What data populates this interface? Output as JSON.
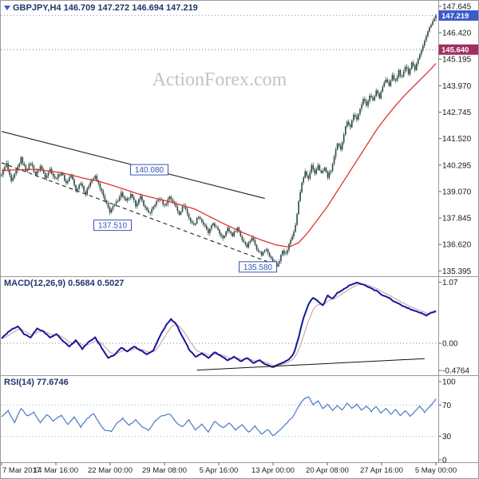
{
  "header": {
    "watermark": "ActionForex.com"
  },
  "panels": {
    "main_label": "GBPJPY,H4 146.709 147.272 146.694 147.219",
    "macd_label": "MACD(12,26,9) 0.5684 0.5027",
    "rsi_label": "RSI(14) 77.6746"
  },
  "colors": {
    "candle": "#2c4a46",
    "ma": "#e03232",
    "macd_main": "#16169c",
    "macd_signal": "#c09090",
    "rsi": "#4a78c4",
    "rsi_level": "#8fb4d0",
    "accent_blue": "#3356b4",
    "grid": "#9a9a9a",
    "axis_text": "#1a1a1a",
    "trendline": "#222222",
    "tick": "#666666"
  },
  "chart_data": [
    {
      "type": "candlestick",
      "symbol": "GBPJPY",
      "timeframe": "H4",
      "ohlc_display": {
        "open": 146.709,
        "high": 147.272,
        "low": 146.694,
        "close": 147.219
      },
      "bars": 270,
      "ylim": [
        135.15,
        147.9
      ],
      "y_ticks": [
        {
          "v": 147.645,
          "label": "147.645"
        },
        {
          "v": 146.42,
          "label": "146.420"
        },
        {
          "v": 145.195,
          "label": "145.195"
        },
        {
          "v": 143.97,
          "label": "143.970"
        },
        {
          "v": 142.745,
          "label": "142.745"
        },
        {
          "v": 141.52,
          "label": "141.520"
        },
        {
          "v": 140.295,
          "label": "140.295"
        },
        {
          "v": 139.07,
          "label": "139.070"
        },
        {
          "v": 137.845,
          "label": "137.845"
        },
        {
          "v": 136.62,
          "label": "136.620"
        },
        {
          "v": 135.395,
          "label": "135.395"
        }
      ],
      "x_ticks": [
        "7 Mar 2017",
        "14 Mar 16:00",
        "22 Mar 00:00",
        "29 Mar 08:00",
        "5 Apr 16:00",
        "13 Apr 00:00",
        "20 Apr 08:00",
        "27 Apr 16:00",
        "5 May 00:00"
      ],
      "price_tags": [
        {
          "text": "147.219",
          "price": 147.219,
          "color": "#3b5bc9"
        },
        {
          "text": "145.640",
          "price": 145.64,
          "color": "#a03060"
        }
      ],
      "dotted_levels": [
        {
          "price": 145.64,
          "color": "#777777"
        },
        {
          "price": 147.219,
          "color": "#7d94dd"
        }
      ],
      "support_resistance_labels": [
        {
          "text": "140.080",
          "price": 140.08,
          "x_center": 186
        },
        {
          "text": "137.510",
          "price": 137.51,
          "x_center": 140
        },
        {
          "text": "135.580",
          "price": 135.58,
          "x_center": 322
        }
      ],
      "trendlines": [
        {
          "style": "solid",
          "from": [
            0,
            141.85
          ],
          "to": [
            163,
            138.75
          ]
        },
        {
          "style": "dashed",
          "from": [
            0,
            140.4
          ],
          "to": [
            172,
            135.62
          ]
        }
      ],
      "close_waypoints": [
        [
          0,
          139.9
        ],
        [
          3,
          140.35
        ],
        [
          6,
          139.5
        ],
        [
          9,
          140.0
        ],
        [
          12,
          140.6
        ],
        [
          15,
          140.05
        ],
        [
          18,
          140.4
        ],
        [
          21,
          139.85
        ],
        [
          24,
          140.25
        ],
        [
          27,
          139.75
        ],
        [
          30,
          140.1
        ],
        [
          33,
          139.65
        ],
        [
          37,
          139.95
        ],
        [
          40,
          139.45
        ],
        [
          43,
          139.85
        ],
        [
          46,
          139.1
        ],
        [
          49,
          139.5
        ],
        [
          52,
          138.95
        ],
        [
          55,
          139.55
        ],
        [
          58,
          139.75
        ],
        [
          61,
          139.25
        ],
        [
          64,
          138.65
        ],
        [
          67,
          138.15
        ],
        [
          71,
          138.55
        ],
        [
          74,
          139.0
        ],
        [
          77,
          138.6
        ],
        [
          80,
          138.9
        ],
        [
          83,
          138.45
        ],
        [
          86,
          138.8
        ],
        [
          89,
          138.3
        ],
        [
          92,
          138.05
        ],
        [
          95,
          138.5
        ],
        [
          98,
          138.75
        ],
        [
          101,
          138.4
        ],
        [
          104,
          138.85
        ],
        [
          107,
          138.5
        ],
        [
          110,
          138.05
        ],
        [
          113,
          138.45
        ],
        [
          116,
          137.85
        ],
        [
          119,
          137.5
        ],
        [
          122,
          137.95
        ],
        [
          125,
          137.55
        ],
        [
          128,
          137.15
        ],
        [
          131,
          137.6
        ],
        [
          134,
          137.25
        ],
        [
          137,
          136.95
        ],
        [
          140,
          137.35
        ],
        [
          143,
          137.05
        ],
        [
          146,
          137.4
        ],
        [
          149,
          136.85
        ],
        [
          152,
          136.55
        ],
        [
          155,
          136.95
        ],
        [
          158,
          136.45
        ],
        [
          161,
          136.15
        ],
        [
          164,
          136.45
        ],
        [
          167,
          135.95
        ],
        [
          170,
          135.68
        ],
        [
          172,
          135.85
        ],
        [
          174,
          136.35
        ],
        [
          176,
          136.15
        ],
        [
          178,
          136.6
        ],
        [
          180,
          137.05
        ],
        [
          182,
          137.5
        ],
        [
          184,
          138.6
        ],
        [
          186,
          139.5
        ],
        [
          188,
          139.95
        ],
        [
          190,
          139.65
        ],
        [
          192,
          140.25
        ],
        [
          194,
          139.85
        ],
        [
          196,
          140.3
        ],
        [
          198,
          139.9
        ],
        [
          200,
          140.15
        ],
        [
          202,
          139.75
        ],
        [
          204,
          140.05
        ],
        [
          206,
          140.65
        ],
        [
          208,
          141.25
        ],
        [
          210,
          141.05
        ],
        [
          212,
          141.75
        ],
        [
          214,
          142.35
        ],
        [
          216,
          142.05
        ],
        [
          218,
          142.65
        ],
        [
          220,
          142.35
        ],
        [
          222,
          142.95
        ],
        [
          224,
          143.35
        ],
        [
          226,
          143.05
        ],
        [
          228,
          143.55
        ],
        [
          230,
          143.25
        ],
        [
          232,
          143.75
        ],
        [
          234,
          143.45
        ],
        [
          236,
          143.95
        ],
        [
          238,
          144.25
        ],
        [
          240,
          143.95
        ],
        [
          242,
          144.45
        ],
        [
          244,
          144.15
        ],
        [
          246,
          144.65
        ],
        [
          248,
          144.35
        ],
        [
          250,
          144.85
        ],
        [
          252,
          144.55
        ],
        [
          254,
          145.05
        ],
        [
          256,
          144.75
        ],
        [
          258,
          145.25
        ],
        [
          260,
          145.65
        ],
        [
          262,
          146.05
        ],
        [
          264,
          146.45
        ],
        [
          266,
          146.85
        ],
        [
          268,
          147.05
        ],
        [
          269,
          147.219
        ]
      ],
      "ma_waypoints": [
        [
          0,
          140.05
        ],
        [
          20,
          140.1
        ],
        [
          37,
          139.95
        ],
        [
          50,
          139.7
        ],
        [
          60,
          139.55
        ],
        [
          71,
          139.3
        ],
        [
          85,
          138.95
        ],
        [
          104,
          138.6
        ],
        [
          120,
          138.25
        ],
        [
          137,
          137.6
        ],
        [
          150,
          137.15
        ],
        [
          160,
          136.85
        ],
        [
          170,
          136.6
        ],
        [
          178,
          136.5
        ],
        [
          184,
          136.7
        ],
        [
          190,
          137.2
        ],
        [
          196,
          137.8
        ],
        [
          202,
          138.4
        ],
        [
          208,
          139.1
        ],
        [
          214,
          139.8
        ],
        [
          220,
          140.5
        ],
        [
          226,
          141.2
        ],
        [
          232,
          141.9
        ],
        [
          238,
          142.5
        ],
        [
          244,
          143.05
        ],
        [
          250,
          143.55
        ],
        [
          256,
          144.0
        ],
        [
          262,
          144.45
        ],
        [
          266,
          144.75
        ],
        [
          269,
          145.0
        ]
      ]
    },
    {
      "type": "line",
      "name": "MACD(12,26,9)",
      "current_values": [
        0.5684,
        0.5027
      ],
      "ylim": [
        -0.56,
        1.16
      ],
      "y_ticks": [
        {
          "v": 1.07,
          "label": "1.07"
        },
        {
          "v": 0,
          "label": "0.00"
        },
        {
          "v": -0.4764,
          "label": "-0.4764"
        }
      ],
      "trendline": {
        "from": [
          121,
          -0.47
        ],
        "to": [
          262,
          -0.27
        ]
      },
      "waypoints": [
        [
          0,
          0.08
        ],
        [
          5,
          0.22
        ],
        [
          10,
          0.3
        ],
        [
          14,
          0.16
        ],
        [
          18,
          0.1
        ],
        [
          22,
          0.26
        ],
        [
          26,
          0.2
        ],
        [
          30,
          0.1
        ],
        [
          34,
          0.16
        ],
        [
          38,
          0.04
        ],
        [
          42,
          -0.06
        ],
        [
          46,
          0.06
        ],
        [
          50,
          -0.1
        ],
        [
          54,
          0.02
        ],
        [
          58,
          0.1
        ],
        [
          62,
          -0.08
        ],
        [
          66,
          -0.26
        ],
        [
          70,
          -0.2
        ],
        [
          74,
          -0.08
        ],
        [
          78,
          -0.14
        ],
        [
          82,
          -0.06
        ],
        [
          86,
          -0.12
        ],
        [
          90,
          -0.2
        ],
        [
          94,
          -0.12
        ],
        [
          98,
          0.12
        ],
        [
          102,
          0.32
        ],
        [
          105,
          0.42
        ],
        [
          108,
          0.34
        ],
        [
          112,
          0.12
        ],
        [
          116,
          -0.1
        ],
        [
          120,
          -0.24
        ],
        [
          124,
          -0.18
        ],
        [
          128,
          -0.26
        ],
        [
          132,
          -0.16
        ],
        [
          136,
          -0.22
        ],
        [
          140,
          -0.3
        ],
        [
          144,
          -0.24
        ],
        [
          148,
          -0.32
        ],
        [
          152,
          -0.26
        ],
        [
          156,
          -0.34
        ],
        [
          160,
          -0.3
        ],
        [
          164,
          -0.38
        ],
        [
          168,
          -0.42
        ],
        [
          171,
          -0.38
        ],
        [
          174,
          -0.34
        ],
        [
          178,
          -0.28
        ],
        [
          181,
          -0.18
        ],
        [
          184,
          0.1
        ],
        [
          187,
          0.45
        ],
        [
          190,
          0.68
        ],
        [
          193,
          0.8
        ],
        [
          196,
          0.74
        ],
        [
          199,
          0.66
        ],
        [
          202,
          0.84
        ],
        [
          205,
          0.78
        ],
        [
          208,
          0.88
        ],
        [
          212,
          0.95
        ],
        [
          216,
          1.02
        ],
        [
          220,
          1.06
        ],
        [
          224,
          1.03
        ],
        [
          228,
          0.97
        ],
        [
          232,
          0.92
        ],
        [
          236,
          0.84
        ],
        [
          240,
          0.79
        ],
        [
          244,
          0.72
        ],
        [
          248,
          0.66
        ],
        [
          252,
          0.61
        ],
        [
          256,
          0.56
        ],
        [
          260,
          0.53
        ],
        [
          263,
          0.49
        ],
        [
          266,
          0.53
        ],
        [
          269,
          0.5684
        ]
      ]
    },
    {
      "type": "line",
      "name": "RSI(14)",
      "current_value": 77.6746,
      "ylim": [
        0,
        100
      ],
      "levels": [
        70,
        30
      ],
      "y_ticks": [
        {
          "v": 100,
          "label": "100"
        },
        {
          "v": 70,
          "label": "70"
        },
        {
          "v": 30,
          "label": "30"
        },
        {
          "v": 0,
          "label": "0"
        }
      ],
      "waypoints": [
        [
          0,
          55
        ],
        [
          4,
          63
        ],
        [
          8,
          48
        ],
        [
          12,
          66
        ],
        [
          16,
          56
        ],
        [
          20,
          61
        ],
        [
          24,
          47
        ],
        [
          28,
          58
        ],
        [
          32,
          50
        ],
        [
          37,
          57
        ],
        [
          41,
          45
        ],
        [
          45,
          55
        ],
        [
          49,
          42
        ],
        [
          53,
          53
        ],
        [
          57,
          59
        ],
        [
          61,
          45
        ],
        [
          64,
          38
        ],
        [
          68,
          36
        ],
        [
          71,
          46
        ],
        [
          75,
          53
        ],
        [
          79,
          44
        ],
        [
          83,
          51
        ],
        [
          87,
          42
        ],
        [
          91,
          38
        ],
        [
          95,
          49
        ],
        [
          99,
          56
        ],
        [
          104,
          59
        ],
        [
          108,
          48
        ],
        [
          112,
          42
        ],
        [
          116,
          51
        ],
        [
          120,
          38
        ],
        [
          124,
          46
        ],
        [
          128,
          36
        ],
        [
          132,
          49
        ],
        [
          137,
          41
        ],
        [
          141,
          47
        ],
        [
          145,
          38
        ],
        [
          149,
          45
        ],
        [
          153,
          35
        ],
        [
          157,
          43
        ],
        [
          161,
          33
        ],
        [
          165,
          39
        ],
        [
          168,
          31
        ],
        [
          172,
          37
        ],
        [
          176,
          46
        ],
        [
          180,
          54
        ],
        [
          184,
          68
        ],
        [
          187,
          77
        ],
        [
          190,
          81
        ],
        [
          193,
          70
        ],
        [
          196,
          76
        ],
        [
          199,
          66
        ],
        [
          202,
          71
        ],
        [
          205,
          63
        ],
        [
          208,
          69
        ],
        [
          211,
          64
        ],
        [
          214,
          73
        ],
        [
          217,
          66
        ],
        [
          220,
          71
        ],
        [
          223,
          64
        ],
        [
          226,
          69
        ],
        [
          229,
          62
        ],
        [
          232,
          68
        ],
        [
          235,
          60
        ],
        [
          238,
          66
        ],
        [
          241,
          58
        ],
        [
          244,
          64
        ],
        [
          247,
          57
        ],
        [
          250,
          63
        ],
        [
          253,
          56
        ],
        [
          256,
          62
        ],
        [
          259,
          69
        ],
        [
          262,
          61
        ],
        [
          265,
          67
        ],
        [
          267,
          73
        ],
        [
          269,
          77.6746
        ]
      ]
    }
  ]
}
